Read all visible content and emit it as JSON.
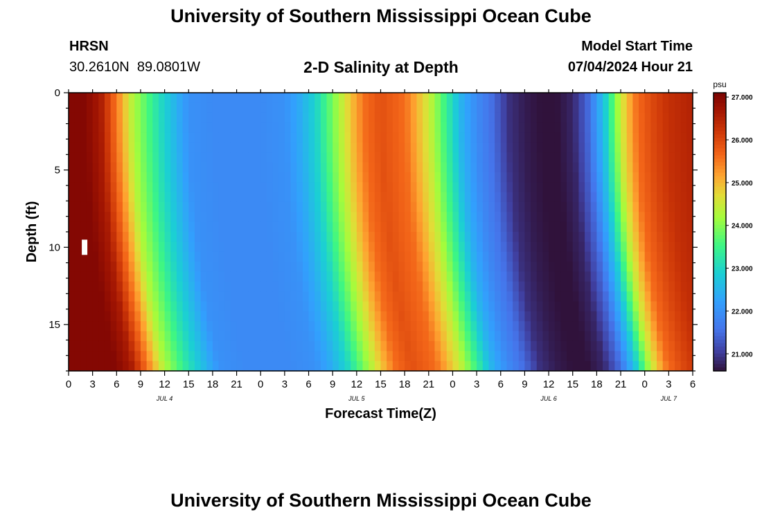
{
  "header": {
    "title": "University of Southern Mississippi Ocean Cube",
    "station": "HRSN",
    "coordinates": "30.2610N  89.0801W",
    "subtitle": "2-D Salinity at Depth",
    "model_start_label": "Model Start Time",
    "model_start_value": "07/04/2024 Hour 21"
  },
  "footer": {
    "title": "University of Southern Mississippi Ocean Cube"
  },
  "chart_data": {
    "type": "heatmap",
    "title": "2-D Salinity at Depth",
    "xlabel": "Forecast Time(Z)",
    "ylabel": "Depth (ft)",
    "x_unit": "hours since JUL 4 00Z",
    "xlim": [
      0,
      78
    ],
    "ylim": [
      18,
      0
    ],
    "x_tick_labels": [
      "0",
      "3",
      "6",
      "9",
      "12",
      "15",
      "18",
      "21",
      "0",
      "3",
      "6",
      "9",
      "12",
      "15",
      "18",
      "21",
      "0",
      "3",
      "6",
      "9",
      "12",
      "15",
      "18",
      "21",
      "0",
      "3",
      "6"
    ],
    "x_ticks": [
      0,
      3,
      6,
      9,
      12,
      15,
      18,
      21,
      24,
      27,
      30,
      33,
      36,
      39,
      42,
      45,
      48,
      51,
      54,
      57,
      60,
      63,
      66,
      69,
      72,
      75,
      78
    ],
    "day_labels": [
      {
        "label": "JUL 4",
        "x": 12
      },
      {
        "label": "JUL 5",
        "x": 36
      },
      {
        "label": "JUL 6",
        "x": 60
      },
      {
        "label": "JUL 7",
        "x": 75
      }
    ],
    "y_ticks": [
      0,
      5,
      10,
      15
    ],
    "colorbar": {
      "unit": "psu",
      "min": 20.6,
      "max": 27.1,
      "tick_values": [
        21.0,
        22.0,
        23.0,
        24.0,
        25.0,
        26.0,
        27.0
      ],
      "tick_labels": [
        "21.000",
        "22.000",
        "23.000",
        "24.000",
        "25.000",
        "26.000",
        "27.000"
      ]
    },
    "surface_profile": {
      "hours": [
        0,
        2,
        4,
        6,
        8,
        11,
        15,
        18,
        21,
        24,
        27,
        29,
        31,
        33,
        35,
        37,
        39,
        42,
        45,
        47,
        49,
        51,
        53,
        55,
        57,
        59,
        61,
        63,
        65,
        67,
        69,
        71,
        73,
        75,
        78
      ],
      "salinity_psu": [
        27.0,
        27.0,
        26.6,
        25.5,
        24.3,
        23.2,
        22.0,
        21.9,
        21.9,
        21.9,
        22.0,
        22.4,
        23.0,
        23.9,
        24.8,
        25.6,
        25.9,
        25.6,
        24.5,
        23.5,
        22.5,
        21.9,
        21.5,
        20.9,
        20.7,
        20.6,
        20.6,
        20.8,
        21.5,
        22.8,
        24.5,
        25.6,
        26.0,
        26.3,
        26.5
      ]
    },
    "depth_shift_note": "low-salinity features arrive later with depth, up to about 4 h later at 18 ft",
    "marker": {
      "x": 2.0,
      "depth": 10
    }
  }
}
